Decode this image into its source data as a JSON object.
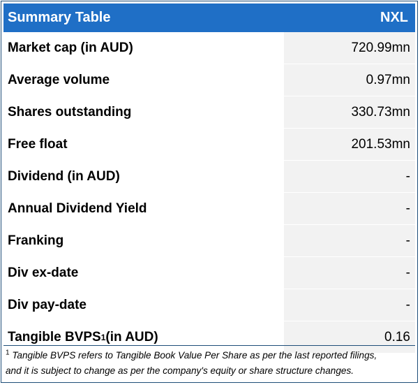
{
  "header": {
    "title": "Summary Table",
    "ticker": "NXL"
  },
  "rows": [
    {
      "label": "Market cap (in AUD)",
      "value": "720.99mn"
    },
    {
      "label": "Average volume",
      "value": "0.97mn"
    },
    {
      "label": "Shares outstanding",
      "value": "330.73mn"
    },
    {
      "label": "Free float",
      "value": "201.53mn"
    },
    {
      "label": "Dividend (in AUD)",
      "value": "-"
    },
    {
      "label": "Annual Dividend Yield",
      "value": "-"
    },
    {
      "label": "Franking",
      "value": "-"
    },
    {
      "label": "Div ex-date",
      "value": "-"
    },
    {
      "label": "Div pay-date",
      "value": "-"
    },
    {
      "label_prefix": "Tangible BVPS",
      "label_sup": "1",
      "label_suffix": " (in AUD)",
      "value": "0.16"
    }
  ],
  "footnote": {
    "marker": "1",
    "line1": " Tangible BVPS refers to Tangible Book Value Per Share as per the last reported filings,",
    "line2": "and it is subject to change as per the company's equity or share structure changes."
  },
  "colors": {
    "header_bg": "#1f6fc6",
    "header_text": "#ffffff",
    "value_bg": "#f2f2f2",
    "border": "#1f4e79"
  }
}
